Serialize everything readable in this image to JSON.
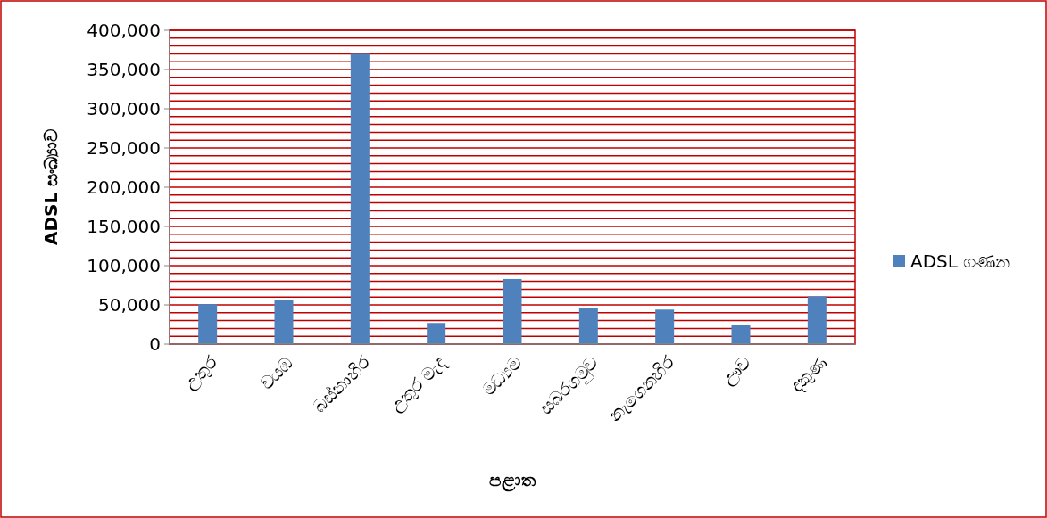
{
  "chart_data": {
    "type": "bar",
    "xlabel": "පළාත",
    "ylabel": "ADSL සංඛ්‍යාව",
    "categories": [
      "උතුර",
      "වයඹ",
      "බස්නාහිර",
      "උතුර මැද",
      "මධ්‍යම",
      "සබරගමුව",
      "නැගෙනහිර",
      "ඌව",
      "දකුණ"
    ],
    "series": [
      {
        "name": "ADSL ගණන",
        "color": "#4f81bd",
        "values": [
          51000,
          56000,
          370000,
          27000,
          83000,
          46000,
          44000,
          25000,
          61000
        ]
      }
    ],
    "ylim": [
      0,
      400000
    ],
    "yticks": [
      {
        "value": 0,
        "label": "0"
      },
      {
        "value": 10000,
        "label": null
      },
      {
        "value": 20000,
        "label": null
      },
      {
        "value": 30000,
        "label": null
      },
      {
        "value": 40000,
        "label": null
      },
      {
        "value": 50000,
        "label": "50,000"
      },
      {
        "value": 60000,
        "label": null
      },
      {
        "value": 70000,
        "label": null
      },
      {
        "value": 80000,
        "label": null
      },
      {
        "value": 90000,
        "label": null
      },
      {
        "value": 100000,
        "label": "100,000"
      },
      {
        "value": 110000,
        "label": null
      },
      {
        "value": 120000,
        "label": null
      },
      {
        "value": 130000,
        "label": null
      },
      {
        "value": 140000,
        "label": null
      },
      {
        "value": 150000,
        "label": "150,000"
      },
      {
        "value": 160000,
        "label": null
      },
      {
        "value": 170000,
        "label": null
      },
      {
        "value": 180000,
        "label": null
      },
      {
        "value": 190000,
        "label": null
      },
      {
        "value": 200000,
        "label": "200,000"
      },
      {
        "value": 210000,
        "label": null
      },
      {
        "value": 220000,
        "label": null
      },
      {
        "value": 230000,
        "label": null
      },
      {
        "value": 240000,
        "label": null
      },
      {
        "value": 250000,
        "label": "250,000"
      },
      {
        "value": 260000,
        "label": null
      },
      {
        "value": 270000,
        "label": null
      },
      {
        "value": 280000,
        "label": null
      },
      {
        "value": 290000,
        "label": null
      },
      {
        "value": 300000,
        "label": "300,000"
      },
      {
        "value": 310000,
        "label": null
      },
      {
        "value": 320000,
        "label": null
      },
      {
        "value": 330000,
        "label": null
      },
      {
        "value": 340000,
        "label": null
      },
      {
        "value": 350000,
        "label": "350,000"
      },
      {
        "value": 360000,
        "label": null
      },
      {
        "value": 370000,
        "label": null
      },
      {
        "value": 380000,
        "label": null
      },
      {
        "value": 390000,
        "label": null
      },
      {
        "value": 400000,
        "label": "400,000"
      }
    ],
    "grid": "y",
    "legend": "right"
  }
}
